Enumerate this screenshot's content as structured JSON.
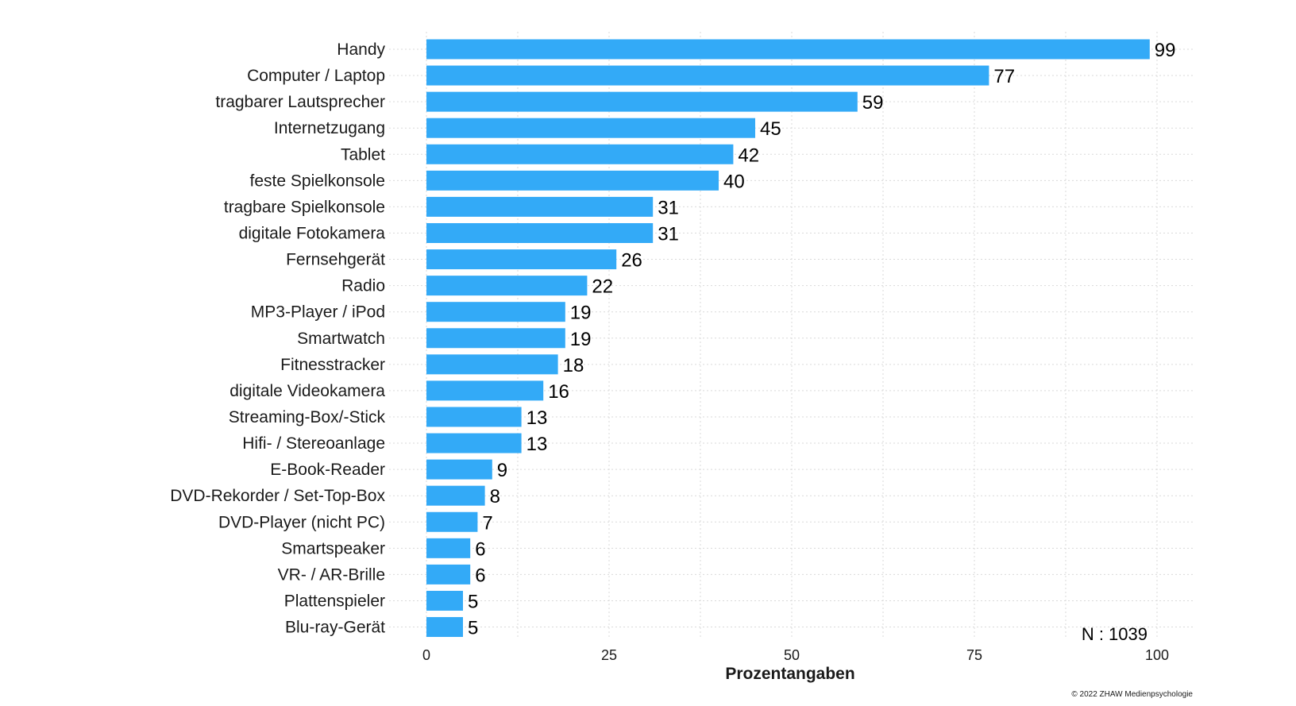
{
  "chart_data": {
    "type": "bar",
    "orientation": "horizontal",
    "categories": [
      "Handy",
      "Computer / Laptop",
      "tragbarer Lautsprecher",
      "Internetzugang",
      "Tablet",
      "feste Spielkonsole",
      "tragbare Spielkonsole",
      "digitale Fotokamera",
      "Fernsehgerät",
      "Radio",
      "MP3-Player / iPod",
      "Smartwatch",
      "Fitnesstracker",
      "digitale Videokamera",
      "Streaming-Box/-Stick",
      "Hifi- / Stereoanlage",
      "E-Book-Reader",
      "DVD-Rekorder / Set-Top-Box",
      "DVD-Player (nicht PC)",
      "Smartspeaker",
      "VR- / AR-Brille",
      "Plattenspieler",
      "Blu-ray-Gerät"
    ],
    "values": [
      99,
      77,
      59,
      45,
      42,
      40,
      31,
      31,
      26,
      22,
      19,
      19,
      18,
      16,
      13,
      13,
      9,
      8,
      7,
      6,
      6,
      5,
      5
    ],
    "title": "",
    "xlabel": "Prozentangaben",
    "ylabel": "",
    "xlim": [
      0,
      100
    ],
    "xticks": [
      "0",
      "25",
      "50",
      "75",
      "100"
    ],
    "grid": true,
    "bar_color": "#33aaf7",
    "n_label": "N : 1039",
    "copyright": "© 2022 ZHAW Medienpsychologie"
  }
}
